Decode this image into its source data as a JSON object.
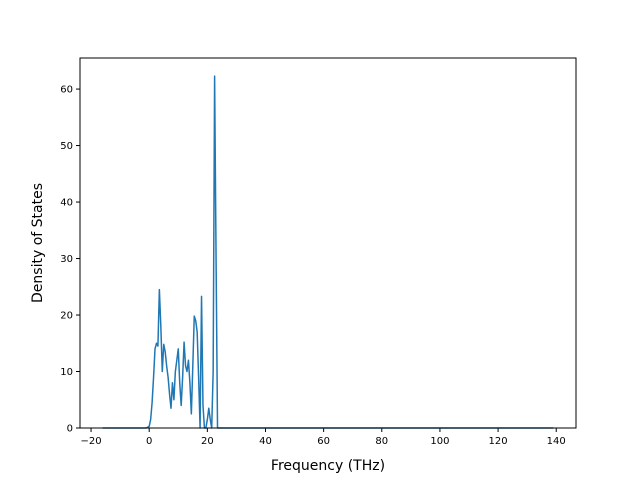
{
  "chart_data": {
    "type": "line",
    "title": "",
    "xlabel": "Frequency (THz)",
    "ylabel": "Density of States",
    "xlim": [
      -23.8,
      146.8
    ],
    "ylim": [
      0,
      65.5
    ],
    "x_ticks": [
      -20,
      0,
      20,
      40,
      60,
      80,
      100,
      120,
      140
    ],
    "x_tick_labels": [
      "−20",
      "0",
      "20",
      "40",
      "60",
      "80",
      "100",
      "120",
      "140"
    ],
    "y_ticks": [
      0,
      10,
      20,
      30,
      40,
      50,
      60
    ],
    "y_tick_labels": [
      "0",
      "10",
      "20",
      "30",
      "40",
      "50",
      "60"
    ],
    "grid": false,
    "series": [
      {
        "color": "#1f77b4",
        "x": [
          -16,
          -5,
          -1,
          0,
          0.5,
          1,
          1.5,
          2,
          2.5,
          3,
          3.5,
          4,
          4.5,
          5,
          5.5,
          6,
          6.5,
          7,
          7.5,
          8,
          8.5,
          9,
          9.5,
          10,
          10.5,
          11,
          11.5,
          12,
          12.5,
          13,
          13.5,
          14,
          14.5,
          15,
          15.5,
          16,
          16.5,
          17,
          17.5,
          18,
          18.5,
          19,
          19.5,
          20,
          20.5,
          21,
          21.5,
          22,
          22.5,
          23,
          23.5,
          24,
          24.5,
          25,
          30,
          139
        ],
        "y": [
          0,
          0,
          0,
          0.3,
          1.5,
          4.5,
          9,
          14,
          15,
          14.5,
          24.5,
          18,
          10,
          14.8,
          13.5,
          11,
          9,
          6,
          3.5,
          8,
          5,
          10,
          12,
          14,
          8,
          4,
          9,
          15.2,
          11,
          10,
          12,
          8,
          2.5,
          11,
          19.8,
          19,
          17,
          9,
          0,
          23.3,
          4,
          0,
          0,
          1.5,
          3.5,
          1.5,
          0,
          10,
          62.3,
          30,
          0,
          0,
          0,
          0,
          0,
          0
        ]
      }
    ]
  }
}
